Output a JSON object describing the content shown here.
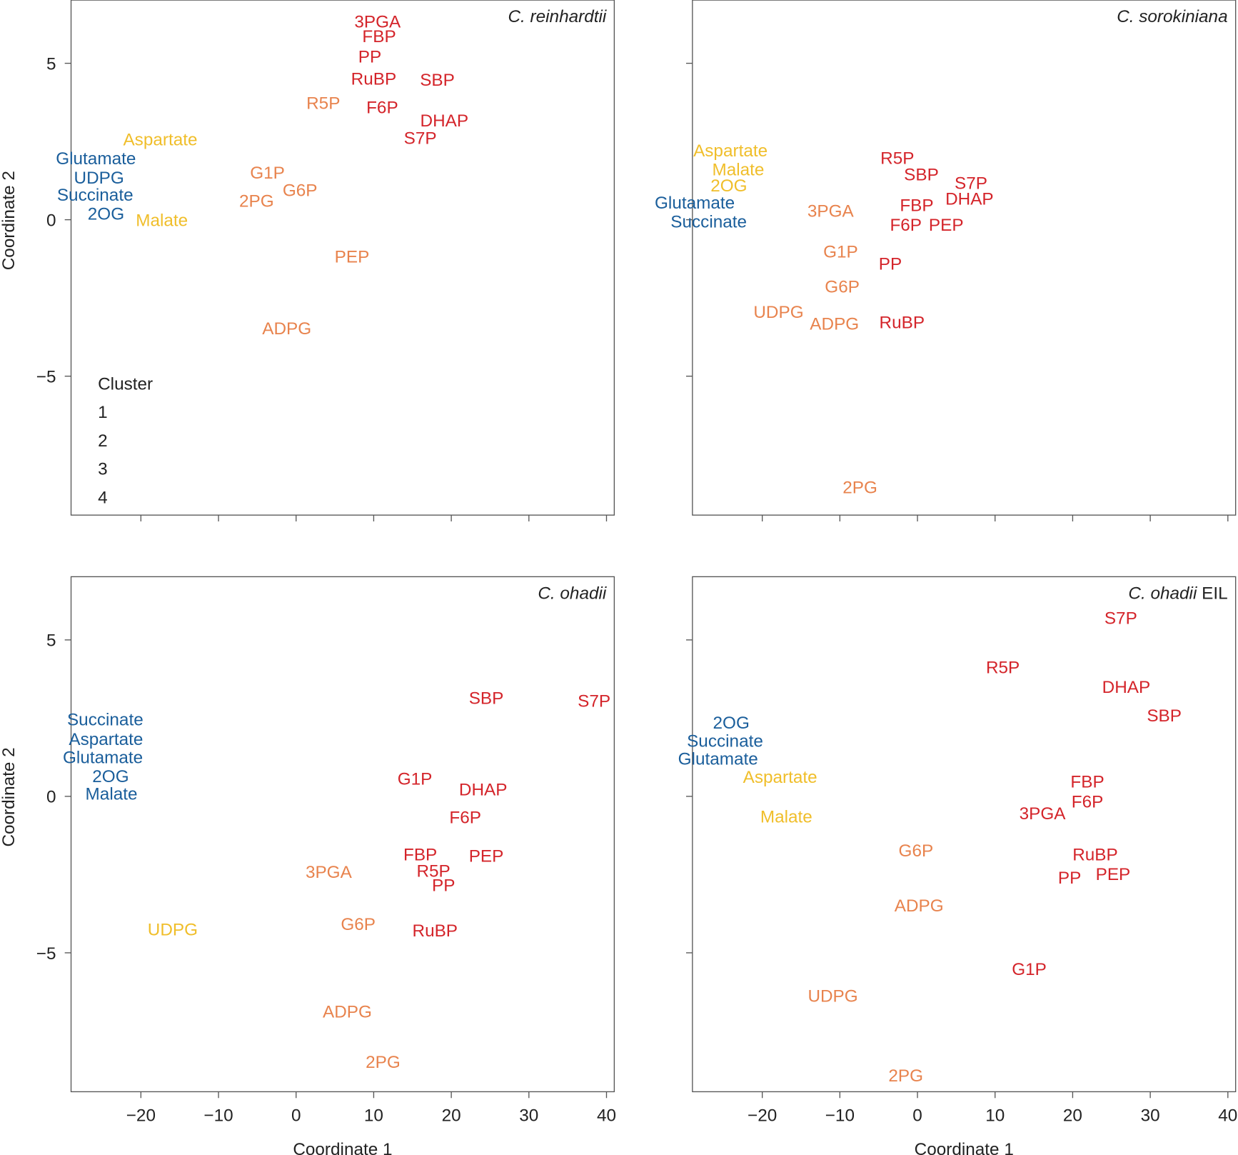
{
  "chart_data": [
    {
      "type": "scatter",
      "title_italic": "C. reinhardtii",
      "title_suffix": "",
      "xlabel": "",
      "ylabel": "Coordinate 2",
      "show_xticklabels": false,
      "show_yticklabels": true,
      "legend": {
        "title": "Cluster",
        "entries": [
          "1",
          "2",
          "3",
          "4"
        ],
        "placement": "bottom-left"
      },
      "points": [
        [
          "3PGA",
          10.5,
          6.34,
          1
        ],
        [
          "FBP",
          10.7,
          5.88,
          1
        ],
        [
          "PP",
          9.5,
          5.23,
          1
        ],
        [
          "RuBP",
          10.0,
          4.52,
          1
        ],
        [
          "SBP",
          18.2,
          4.49,
          1
        ],
        [
          "R5P",
          3.5,
          3.74,
          2
        ],
        [
          "F6P",
          11.1,
          3.61,
          1
        ],
        [
          "DHAP",
          19.1,
          3.18,
          1
        ],
        [
          "S7P",
          16.0,
          2.63,
          1
        ],
        [
          "Aspartate",
          -17.5,
          2.58,
          3
        ],
        [
          "Glutamate",
          -25.8,
          1.97,
          4
        ],
        [
          "UDPG",
          -25.4,
          1.36,
          4
        ],
        [
          "Succinate",
          -25.9,
          0.81,
          4
        ],
        [
          "2OG",
          -24.5,
          0.2,
          4
        ],
        [
          "Malate",
          -17.3,
          0.0,
          3
        ],
        [
          "G1P",
          -3.7,
          1.52,
          2
        ],
        [
          "G6P",
          0.5,
          0.96,
          2
        ],
        [
          "2PG",
          -5.1,
          0.61,
          2
        ],
        [
          "PEP",
          7.2,
          -1.16,
          2
        ],
        [
          "ADPG",
          -1.2,
          -3.46,
          2
        ]
      ]
    },
    {
      "type": "scatter",
      "title_italic": "C. sorokiniana",
      "title_suffix": "",
      "xlabel": "",
      "ylabel": "",
      "show_xticklabels": false,
      "show_yticklabels": false,
      "points": [
        [
          "Aspartate",
          -24.1,
          2.22,
          3
        ],
        [
          "Malate",
          -23.1,
          1.62,
          3
        ],
        [
          "2OG",
          -24.3,
          1.11,
          3
        ],
        [
          "Glutamate",
          -28.7,
          0.56,
          4
        ],
        [
          "Succinate",
          -26.9,
          -0.05,
          4
        ],
        [
          "R5P",
          -2.6,
          1.99,
          1
        ],
        [
          "SBP",
          0.5,
          1.46,
          1
        ],
        [
          "S7P",
          6.9,
          1.19,
          1
        ],
        [
          "DHAP",
          6.7,
          0.68,
          1
        ],
        [
          "FBP",
          -0.1,
          0.48,
          1
        ],
        [
          "3PGA",
          -11.2,
          0.3,
          2
        ],
        [
          "F6P",
          -1.5,
          -0.15,
          1
        ],
        [
          "PEP",
          3.7,
          -0.15,
          1
        ],
        [
          "G1P",
          -9.9,
          -1.01,
          2
        ],
        [
          "PP",
          -3.5,
          -1.39,
          1
        ],
        [
          "G6P",
          -9.7,
          -2.12,
          2
        ],
        [
          "UDPG",
          -17.9,
          -2.93,
          2
        ],
        [
          "ADPG",
          -10.7,
          -3.31,
          2
        ],
        [
          "RuBP",
          -2.0,
          -3.26,
          1
        ],
        [
          "2PG",
          -7.4,
          -8.54,
          2
        ]
      ]
    },
    {
      "type": "scatter",
      "title_italic": "C. ohadii",
      "title_suffix": "",
      "xlabel": "Coordinate 1",
      "ylabel": "Coordinate 2",
      "show_xticklabels": true,
      "show_yticklabels": true,
      "points": [
        [
          "SBP",
          24.5,
          3.16,
          1
        ],
        [
          "S7P",
          38.4,
          3.06,
          1
        ],
        [
          "Succinate",
          -24.6,
          2.47,
          4
        ],
        [
          "Aspartate",
          -24.5,
          1.84,
          4
        ],
        [
          "Glutamate",
          -24.9,
          1.26,
          4
        ],
        [
          "2OG",
          -23.9,
          0.66,
          4
        ],
        [
          "Malate",
          -23.8,
          0.1,
          4
        ],
        [
          "G1P",
          15.3,
          0.58,
          1
        ],
        [
          "DHAP",
          24.1,
          0.23,
          1
        ],
        [
          "F6P",
          21.8,
          -0.66,
          1
        ],
        [
          "FBP",
          16.0,
          -1.84,
          1
        ],
        [
          "PEP",
          24.5,
          -1.89,
          1
        ],
        [
          "3PGA",
          4.2,
          -2.4,
          2
        ],
        [
          "R5P",
          17.7,
          -2.37,
          1
        ],
        [
          "PP",
          19.0,
          -2.83,
          1
        ],
        [
          "UDPG",
          -15.9,
          -4.24,
          3
        ],
        [
          "G6P",
          8.0,
          -4.07,
          2
        ],
        [
          "RuBP",
          17.9,
          -4.27,
          1
        ],
        [
          "ADPG",
          6.6,
          -6.87,
          2
        ],
        [
          "2PG",
          11.2,
          -8.48,
          2
        ]
      ]
    },
    {
      "type": "scatter",
      "title_italic": "C. ohadii",
      "title_suffix": "EIL",
      "xlabel": "Coordinate 1",
      "ylabel": "",
      "show_xticklabels": true,
      "show_yticklabels": false,
      "points": [
        [
          "S7P",
          26.2,
          5.71,
          1
        ],
        [
          "R5P",
          11.0,
          4.14,
          1
        ],
        [
          "DHAP",
          26.9,
          3.51,
          1
        ],
        [
          "SBP",
          31.8,
          2.6,
          1
        ],
        [
          "2OG",
          -24.0,
          2.37,
          4
        ],
        [
          "Succinate",
          -24.8,
          1.79,
          4
        ],
        [
          "Glutamate",
          -25.7,
          1.21,
          4
        ],
        [
          "Aspartate",
          -17.7,
          0.63,
          3
        ],
        [
          "FBP",
          21.9,
          0.48,
          1
        ],
        [
          "F6P",
          21.9,
          -0.15,
          1
        ],
        [
          "3PGA",
          16.1,
          -0.53,
          1
        ],
        [
          "Malate",
          -16.9,
          -0.63,
          3
        ],
        [
          "G6P",
          -0.2,
          -1.72,
          2
        ],
        [
          "RuBP",
          22.9,
          -1.84,
          1
        ],
        [
          "PEP",
          25.2,
          -2.47,
          1
        ],
        [
          "PP",
          19.6,
          -2.58,
          1
        ],
        [
          "ADPG",
          0.2,
          -3.48,
          2
        ],
        [
          "G1P",
          14.4,
          -5.51,
          1
        ],
        [
          "UDPG",
          -10.9,
          -6.36,
          2
        ],
        [
          "2PG",
          -1.5,
          -8.91,
          2
        ]
      ]
    }
  ],
  "axes": {
    "xlim": [
      -29,
      41
    ],
    "ylim": [
      -9.44,
      7.02
    ],
    "xticks": [
      -20,
      -10,
      0,
      10,
      20,
      30,
      40
    ],
    "yticks": [
      -5,
      0,
      5
    ],
    "grid": false
  },
  "cluster_colors": {
    "1": "#d4242a",
    "2": "#e8834d",
    "3": "#f0be2a",
    "4": "#1a5e9b"
  }
}
